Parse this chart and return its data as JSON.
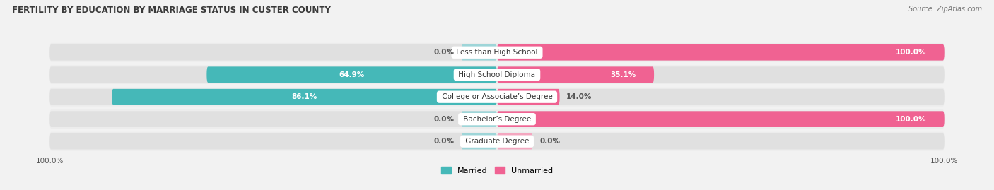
{
  "title": "FERTILITY BY EDUCATION BY MARRIAGE STATUS IN CUSTER COUNTY",
  "source": "Source: ZipAtlas.com",
  "categories": [
    "Less than High School",
    "High School Diploma",
    "College or Associate’s Degree",
    "Bachelor’s Degree",
    "Graduate Degree"
  ],
  "married": [
    0.0,
    64.9,
    86.1,
    0.0,
    0.0
  ],
  "unmarried": [
    100.0,
    35.1,
    14.0,
    100.0,
    0.0
  ],
  "married_color": "#45b8b8",
  "married_light_color": "#9ed5d8",
  "unmarried_color": "#f06292",
  "unmarried_light_color": "#f4a7c0",
  "bg_color": "#f2f2f2",
  "bar_bg_color": "#e0e0e0",
  "row_bg_color": "#ececec",
  "title_color": "#3a3a3a",
  "label_color": "#333333",
  "value_color_inside": "#ffffff",
  "value_color_outside": "#555555",
  "legend_married": "Married",
  "legend_unmarried": "Unmarried",
  "figsize": [
    14.06,
    2.69
  ],
  "dpi": 100,
  "stub_married": 8,
  "stub_unmarried": 8
}
